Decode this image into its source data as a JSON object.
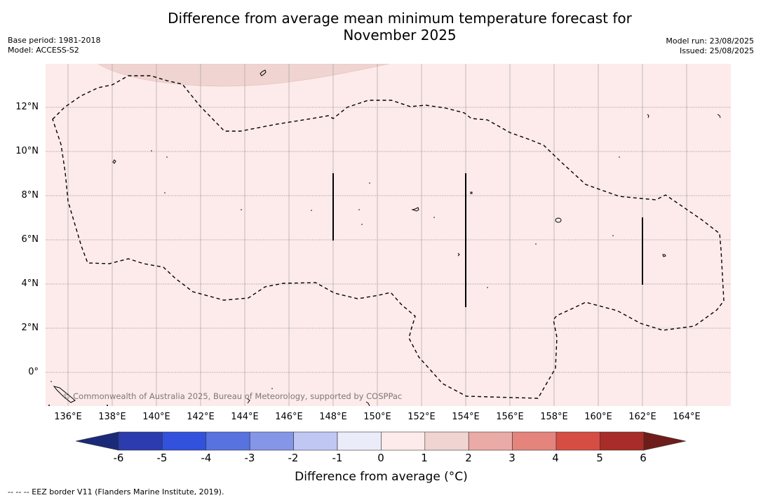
{
  "title_line1": "Difference from average mean minimum temperature forecast for",
  "title_line2": "November 2025",
  "base_period": "Base period: 1981-2018",
  "model": "Model: ACCESS-S2",
  "model_run": "Model run: 23/08/2025",
  "issued": "Issued: 25/08/2025",
  "copyright": "© Commonwealth of Australia 2025, Bureau of Meteorology, supported by COSPPac",
  "lat_labels": [
    "12°N",
    "10°N",
    "8°N",
    "6°N",
    "4°N",
    "2°N",
    "0°"
  ],
  "lon_labels": [
    "136°E",
    "138°E",
    "140°E",
    "142°E",
    "144°E",
    "146°E",
    "148°E",
    "150°E",
    "152°E",
    "154°E",
    "156°E",
    "158°E",
    "160°E",
    "162°E",
    "164°E"
  ],
  "colorbar": {
    "ticks": [
      "-6",
      "-5",
      "-4",
      "-3",
      "-2",
      "-1",
      "0",
      "1",
      "2",
      "3",
      "4",
      "5",
      "6"
    ],
    "colors": [
      "#1b2a78",
      "#2c3cae",
      "#3251dc",
      "#5872df",
      "#8595e7",
      "#c0c7f3",
      "#ebecfa",
      "#fcebea",
      "#f0d4d2",
      "#eaaaa5",
      "#e4847d",
      "#d64d43",
      "#a82c27",
      "#6f1d1a"
    ],
    "label": "Difference from average (°C)"
  },
  "legend_note": "-- -- -- EEZ border V11 (Flanders Marine Institute, 2019).",
  "map_colors": {
    "background_anomaly": "#fcebea",
    "warm_patch": "#f0d4d2"
  }
}
